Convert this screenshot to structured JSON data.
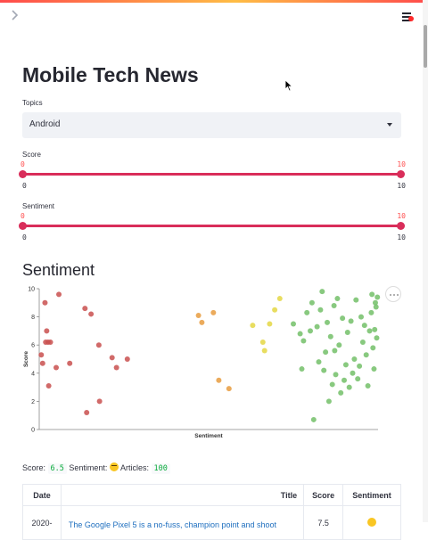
{
  "page": {
    "title": "Mobile Tech News"
  },
  "topics": {
    "label": "Topics",
    "selected": "Android"
  },
  "score_slider": {
    "label": "Score",
    "low_value": "0",
    "high_value": "10",
    "min_tick": "0",
    "max_tick": "10"
  },
  "sentiment_slider": {
    "label": "Sentiment",
    "low_value": "0",
    "high_value": "10",
    "min_tick": "0",
    "max_tick": "10"
  },
  "section": {
    "title": "Sentiment"
  },
  "chart_data": {
    "type": "scatter",
    "xlabel": "Sentiment",
    "ylabel": "Score",
    "ylim": [
      0,
      10
    ],
    "yticks": [
      "0",
      "2",
      "4",
      "6",
      "8",
      "10"
    ],
    "xlim": [
      0,
      10
    ],
    "grid": false,
    "points": [
      {
        "x": 0.06,
        "y": 5.3,
        "color": "#c9504f"
      },
      {
        "x": 0.1,
        "y": 4.7,
        "color": "#c9504f"
      },
      {
        "x": 0.17,
        "y": 9.0,
        "color": "#c9504f"
      },
      {
        "x": 0.19,
        "y": 6.2,
        "color": "#c9504f"
      },
      {
        "x": 0.22,
        "y": 7.0,
        "color": "#c9504f"
      },
      {
        "x": 0.26,
        "y": 6.2,
        "color": "#c9504f"
      },
      {
        "x": 0.28,
        "y": 3.1,
        "color": "#c9504f"
      },
      {
        "x": 0.33,
        "y": 6.2,
        "color": "#c9504f"
      },
      {
        "x": 0.5,
        "y": 4.4,
        "color": "#c9504f"
      },
      {
        "x": 0.58,
        "y": 9.6,
        "color": "#c9504f"
      },
      {
        "x": 0.9,
        "y": 4.7,
        "color": "#c9504f"
      },
      {
        "x": 1.35,
        "y": 8.6,
        "color": "#c9504f"
      },
      {
        "x": 1.4,
        "y": 1.2,
        "color": "#c9504f"
      },
      {
        "x": 1.53,
        "y": 8.2,
        "color": "#c9504f"
      },
      {
        "x": 1.76,
        "y": 6.0,
        "color": "#c9504f"
      },
      {
        "x": 1.78,
        "y": 2.0,
        "color": "#c9504f"
      },
      {
        "x": 2.15,
        "y": 5.1,
        "color": "#c9504f"
      },
      {
        "x": 2.28,
        "y": 4.4,
        "color": "#c9504f"
      },
      {
        "x": 2.6,
        "y": 5.0,
        "color": "#c9504f"
      },
      {
        "x": 4.7,
        "y": 8.1,
        "color": "#e89c3f"
      },
      {
        "x": 4.8,
        "y": 7.6,
        "color": "#e89c3f"
      },
      {
        "x": 5.14,
        "y": 8.3,
        "color": "#e89c3f"
      },
      {
        "x": 5.3,
        "y": 3.5,
        "color": "#e89c3f"
      },
      {
        "x": 5.6,
        "y": 2.9,
        "color": "#e89c3f"
      },
      {
        "x": 6.3,
        "y": 7.4,
        "color": "#e4d744"
      },
      {
        "x": 6.6,
        "y": 6.2,
        "color": "#e4d744"
      },
      {
        "x": 6.65,
        "y": 5.6,
        "color": "#e4d744"
      },
      {
        "x": 6.8,
        "y": 7.5,
        "color": "#e4d744"
      },
      {
        "x": 6.95,
        "y": 8.5,
        "color": "#e4d744"
      },
      {
        "x": 7.1,
        "y": 9.3,
        "color": "#e4d744"
      },
      {
        "x": 7.5,
        "y": 7.5,
        "color": "#73bf69"
      },
      {
        "x": 7.7,
        "y": 6.8,
        "color": "#73bf69"
      },
      {
        "x": 7.75,
        "y": 4.3,
        "color": "#73bf69"
      },
      {
        "x": 7.8,
        "y": 6.3,
        "color": "#73bf69"
      },
      {
        "x": 7.9,
        "y": 8.3,
        "color": "#73bf69"
      },
      {
        "x": 8.0,
        "y": 7.0,
        "color": "#73bf69"
      },
      {
        "x": 8.05,
        "y": 9.0,
        "color": "#73bf69"
      },
      {
        "x": 8.1,
        "y": 0.7,
        "color": "#73bf69"
      },
      {
        "x": 8.2,
        "y": 7.3,
        "color": "#73bf69"
      },
      {
        "x": 8.25,
        "y": 4.8,
        "color": "#73bf69"
      },
      {
        "x": 8.3,
        "y": 8.5,
        "color": "#73bf69"
      },
      {
        "x": 8.35,
        "y": 9.8,
        "color": "#73bf69"
      },
      {
        "x": 8.4,
        "y": 4.2,
        "color": "#73bf69"
      },
      {
        "x": 8.45,
        "y": 5.5,
        "color": "#73bf69"
      },
      {
        "x": 8.5,
        "y": 7.6,
        "color": "#73bf69"
      },
      {
        "x": 8.55,
        "y": 2.0,
        "color": "#73bf69"
      },
      {
        "x": 8.6,
        "y": 6.6,
        "color": "#73bf69"
      },
      {
        "x": 8.65,
        "y": 3.2,
        "color": "#73bf69"
      },
      {
        "x": 8.7,
        "y": 8.8,
        "color": "#73bf69"
      },
      {
        "x": 8.72,
        "y": 5.6,
        "color": "#73bf69"
      },
      {
        "x": 8.75,
        "y": 3.9,
        "color": "#73bf69"
      },
      {
        "x": 8.8,
        "y": 9.3,
        "color": "#73bf69"
      },
      {
        "x": 8.85,
        "y": 6.0,
        "color": "#73bf69"
      },
      {
        "x": 8.9,
        "y": 2.6,
        "color": "#73bf69"
      },
      {
        "x": 8.95,
        "y": 7.9,
        "color": "#73bf69"
      },
      {
        "x": 9.0,
        "y": 3.5,
        "color": "#73bf69"
      },
      {
        "x": 9.05,
        "y": 4.6,
        "color": "#73bf69"
      },
      {
        "x": 9.1,
        "y": 6.9,
        "color": "#73bf69"
      },
      {
        "x": 9.15,
        "y": 3.0,
        "color": "#73bf69"
      },
      {
        "x": 9.2,
        "y": 7.7,
        "color": "#73bf69"
      },
      {
        "x": 9.25,
        "y": 4.0,
        "color": "#73bf69"
      },
      {
        "x": 9.3,
        "y": 5.0,
        "color": "#73bf69"
      },
      {
        "x": 9.35,
        "y": 9.2,
        "color": "#73bf69"
      },
      {
        "x": 9.4,
        "y": 3.6,
        "color": "#73bf69"
      },
      {
        "x": 9.45,
        "y": 4.5,
        "color": "#73bf69"
      },
      {
        "x": 9.5,
        "y": 8.0,
        "color": "#73bf69"
      },
      {
        "x": 9.55,
        "y": 6.2,
        "color": "#73bf69"
      },
      {
        "x": 9.6,
        "y": 7.4,
        "color": "#73bf69"
      },
      {
        "x": 9.65,
        "y": 5.3,
        "color": "#73bf69"
      },
      {
        "x": 9.7,
        "y": 3.1,
        "color": "#73bf69"
      },
      {
        "x": 9.75,
        "y": 7.0,
        "color": "#73bf69"
      },
      {
        "x": 9.8,
        "y": 8.3,
        "color": "#73bf69"
      },
      {
        "x": 9.82,
        "y": 9.6,
        "color": "#73bf69"
      },
      {
        "x": 9.85,
        "y": 5.8,
        "color": "#73bf69"
      },
      {
        "x": 9.88,
        "y": 4.3,
        "color": "#73bf69"
      },
      {
        "x": 9.9,
        "y": 7.1,
        "color": "#73bf69"
      },
      {
        "x": 9.92,
        "y": 9.0,
        "color": "#73bf69"
      },
      {
        "x": 9.94,
        "y": 8.7,
        "color": "#73bf69"
      },
      {
        "x": 9.96,
        "y": 6.5,
        "color": "#73bf69"
      },
      {
        "x": 9.98,
        "y": 9.4,
        "color": "#73bf69"
      }
    ]
  },
  "summary": {
    "score_label": "Score:",
    "score_value": "6.5",
    "sentiment_label": "Sentiment:",
    "sentiment_icon": "grinning-face-icon",
    "articles_label": "Articles:",
    "articles_value": "100"
  },
  "table": {
    "headers": {
      "date": "Date",
      "title": "Title",
      "score": "Score",
      "sentiment": "Sentiment"
    },
    "rows": [
      {
        "date": "2020-",
        "title": "The Google Pixel 5 is a no-fuss, champion point and shoot",
        "score": "7.5",
        "sentiment_icon": "smiling-face-icon"
      }
    ]
  },
  "colors": {
    "accent": "#ff4b4b",
    "slider": "#d92d5a",
    "link": "#1f6fbf",
    "code": "#09ab3b"
  }
}
